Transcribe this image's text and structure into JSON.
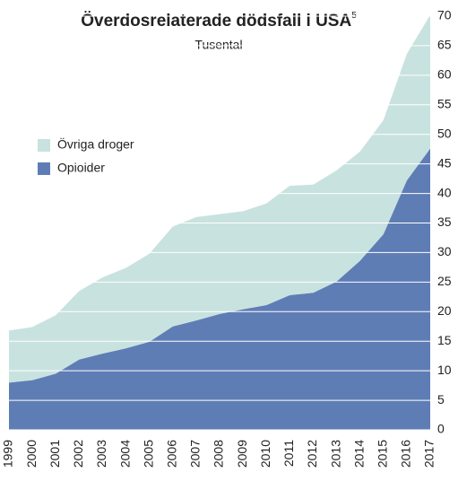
{
  "chart_data": {
    "type": "stacked_area",
    "title": "Överdosrelaterade dödsfall i USA",
    "title_note": "5",
    "subtitle": "Tusental",
    "x": [
      "1999",
      "2000",
      "2001",
      "2002",
      "2003",
      "2004",
      "2005",
      "2006",
      "2007",
      "2008",
      "2009",
      "2010",
      "2011",
      "2012",
      "2013",
      "2014",
      "2015",
      "2016",
      "2017"
    ],
    "series": [
      {
        "name": "Opioider",
        "color": "#5f7db5",
        "values": [
          8.0,
          8.4,
          9.5,
          11.9,
          12.9,
          13.8,
          14.9,
          17.5,
          18.5,
          19.6,
          20.4,
          21.1,
          22.8,
          23.2,
          25.1,
          28.6,
          33.1,
          42.2,
          47.6
        ]
      },
      {
        "name": "Övriga droger",
        "color": "#c8e2df",
        "values": [
          8.8,
          9.0,
          9.9,
          11.6,
          12.9,
          13.6,
          14.9,
          16.9,
          17.5,
          16.9,
          16.6,
          17.2,
          18.5,
          18.3,
          18.8,
          18.5,
          19.3,
          21.4,
          22.6
        ]
      }
    ],
    "ylim": [
      0,
      70
    ],
    "yticks": [
      0,
      5,
      10,
      15,
      20,
      25,
      30,
      35,
      40,
      45,
      50,
      55,
      60,
      65,
      70
    ],
    "grid": true,
    "legend": "upper-left"
  }
}
